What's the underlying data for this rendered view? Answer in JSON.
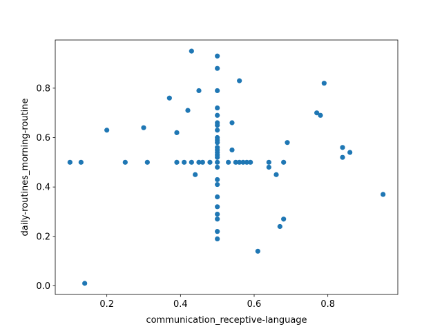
{
  "chart_data": {
    "type": "scatter",
    "title": "",
    "xlabel": "communication_receptive-language",
    "ylabel": "daily-routines_morning-routine",
    "xlim": [
      0.06,
      0.99
    ],
    "ylim": [
      -0.035,
      0.995
    ],
    "xticks": [
      0.2,
      0.4,
      0.6,
      0.8
    ],
    "yticks": [
      0.0,
      0.2,
      0.4,
      0.6,
      0.8
    ],
    "xtick_labels": [
      "0.2",
      "0.4",
      "0.6",
      "0.8"
    ],
    "ytick_labels": [
      "0.0",
      "0.2",
      "0.4",
      "0.6",
      "0.8"
    ],
    "grid": false,
    "marker_color": "#1f77b4",
    "points": [
      {
        "x": 0.1,
        "y": 0.5
      },
      {
        "x": 0.13,
        "y": 0.5
      },
      {
        "x": 0.14,
        "y": 0.01
      },
      {
        "x": 0.2,
        "y": 0.63
      },
      {
        "x": 0.25,
        "y": 0.5
      },
      {
        "x": 0.3,
        "y": 0.64
      },
      {
        "x": 0.31,
        "y": 0.5
      },
      {
        "x": 0.37,
        "y": 0.76
      },
      {
        "x": 0.39,
        "y": 0.62
      },
      {
        "x": 0.39,
        "y": 0.5
      },
      {
        "x": 0.41,
        "y": 0.5
      },
      {
        "x": 0.42,
        "y": 0.71
      },
      {
        "x": 0.43,
        "y": 0.95
      },
      {
        "x": 0.43,
        "y": 0.5
      },
      {
        "x": 0.44,
        "y": 0.45
      },
      {
        "x": 0.45,
        "y": 0.79
      },
      {
        "x": 0.45,
        "y": 0.5
      },
      {
        "x": 0.46,
        "y": 0.5
      },
      {
        "x": 0.48,
        "y": 0.5
      },
      {
        "x": 0.5,
        "y": 0.93
      },
      {
        "x": 0.5,
        "y": 0.88
      },
      {
        "x": 0.5,
        "y": 0.79
      },
      {
        "x": 0.5,
        "y": 0.72
      },
      {
        "x": 0.5,
        "y": 0.69
      },
      {
        "x": 0.5,
        "y": 0.66
      },
      {
        "x": 0.5,
        "y": 0.65
      },
      {
        "x": 0.5,
        "y": 0.63
      },
      {
        "x": 0.5,
        "y": 0.6
      },
      {
        "x": 0.5,
        "y": 0.59
      },
      {
        "x": 0.5,
        "y": 0.58
      },
      {
        "x": 0.5,
        "y": 0.56
      },
      {
        "x": 0.5,
        "y": 0.55
      },
      {
        "x": 0.5,
        "y": 0.54
      },
      {
        "x": 0.5,
        "y": 0.53
      },
      {
        "x": 0.5,
        "y": 0.52
      },
      {
        "x": 0.5,
        "y": 0.5
      },
      {
        "x": 0.5,
        "y": 0.48
      },
      {
        "x": 0.5,
        "y": 0.43
      },
      {
        "x": 0.5,
        "y": 0.41
      },
      {
        "x": 0.5,
        "y": 0.36
      },
      {
        "x": 0.5,
        "y": 0.32
      },
      {
        "x": 0.5,
        "y": 0.29
      },
      {
        "x": 0.5,
        "y": 0.27
      },
      {
        "x": 0.5,
        "y": 0.22
      },
      {
        "x": 0.5,
        "y": 0.19
      },
      {
        "x": 0.53,
        "y": 0.5
      },
      {
        "x": 0.54,
        "y": 0.66
      },
      {
        "x": 0.54,
        "y": 0.55
      },
      {
        "x": 0.55,
        "y": 0.5
      },
      {
        "x": 0.56,
        "y": 0.83
      },
      {
        "x": 0.56,
        "y": 0.5
      },
      {
        "x": 0.57,
        "y": 0.5
      },
      {
        "x": 0.58,
        "y": 0.5
      },
      {
        "x": 0.59,
        "y": 0.5
      },
      {
        "x": 0.61,
        "y": 0.14
      },
      {
        "x": 0.64,
        "y": 0.5
      },
      {
        "x": 0.64,
        "y": 0.48
      },
      {
        "x": 0.66,
        "y": 0.45
      },
      {
        "x": 0.67,
        "y": 0.24
      },
      {
        "x": 0.68,
        "y": 0.5
      },
      {
        "x": 0.68,
        "y": 0.27
      },
      {
        "x": 0.69,
        "y": 0.58
      },
      {
        "x": 0.77,
        "y": 0.7
      },
      {
        "x": 0.78,
        "y": 0.69
      },
      {
        "x": 0.79,
        "y": 0.82
      },
      {
        "x": 0.84,
        "y": 0.56
      },
      {
        "x": 0.84,
        "y": 0.52
      },
      {
        "x": 0.86,
        "y": 0.54
      },
      {
        "x": 0.95,
        "y": 0.37
      }
    ]
  }
}
